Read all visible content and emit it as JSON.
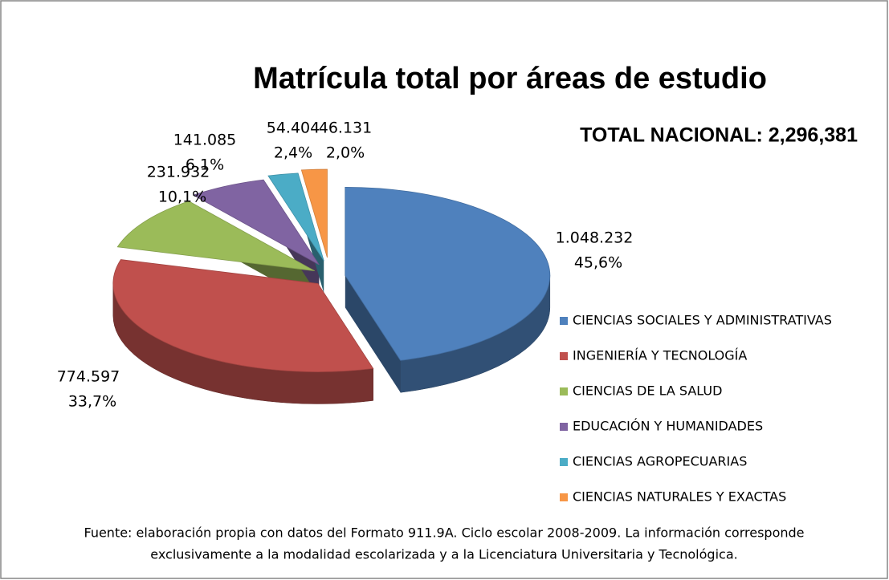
{
  "chart_data": {
    "type": "pie",
    "title": "Matrícula total por áreas de estudio",
    "subtitle": "TOTAL NACIONAL: 2,296,381",
    "categories": [
      "CIENCIAS SOCIALES Y ADMINISTRATIVAS",
      "INGENIERÍA Y TECNOLOGÍA",
      "CIENCIAS DE LA SALUD",
      "EDUCACIÓN Y HUMANIDADES",
      "CIENCIAS AGROPECUARIAS",
      "CIENCIAS NATURALES Y EXACTAS"
    ],
    "values": [
      1048232,
      774597,
      231932,
      141085,
      54404,
      46131
    ],
    "value_labels": [
      "1.048.232",
      "774.597",
      "231.932",
      "141.085",
      "54.404",
      "46.131"
    ],
    "percent_labels": [
      "45,6%",
      "33,7%",
      "10,1%",
      "6,1%",
      "2,4%",
      "2,0%"
    ],
    "colors": [
      "#4f81bd",
      "#c0504d",
      "#9bbb59",
      "#8064a2",
      "#4bacc6",
      "#f79646"
    ],
    "legend": "right",
    "source": [
      "Fuente: elaboración propia con datos  del  Formato 911.9A. Ciclo escolar 2008-2009. La información corresponde",
      "exclusivamente  a la modalidad escolarizada y a la Licenciatura  Universitaria y Tecnológica."
    ]
  }
}
